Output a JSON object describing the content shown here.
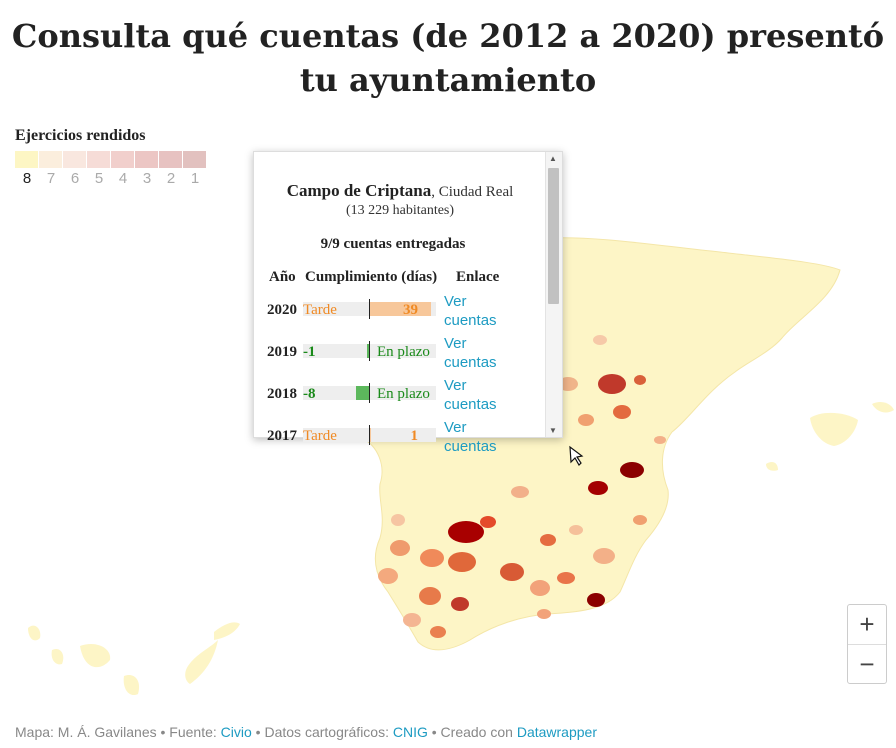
{
  "title": "Consulta qué cuentas (de 2012 a 2020) presentó tu ayuntamiento",
  "legend": {
    "title": "Ejercicios rendidos",
    "labels": [
      "8",
      "7",
      "6",
      "5",
      "4",
      "3",
      "2",
      "1"
    ],
    "active_label": "8",
    "colors": [
      "#fdf6c4",
      "#fbeedd",
      "#f9e7df",
      "#f6dcd7",
      "#f1cfcc",
      "#ecc6c4",
      "#e7c2c1",
      "#e2c1bf"
    ]
  },
  "tooltip": {
    "municipality": "Campo de Criptana",
    "province": ", Ciudad Real",
    "population": "(13 229 habitantes)",
    "summary": "9/9 cuentas entregadas",
    "headers": {
      "year": "Año",
      "compliance": "Cumplimiento (días)",
      "link": "Enlace"
    },
    "rows": [
      {
        "year": "2020",
        "label": "Tarde",
        "value": "39",
        "days": 39,
        "status": "late"
      },
      {
        "year": "2019",
        "label": "En plazo",
        "value": "-1",
        "days": -1,
        "status": "ok"
      },
      {
        "year": "2018",
        "label": "En plazo",
        "value": "-8",
        "days": -8,
        "status": "ok"
      },
      {
        "year": "2017",
        "label": "Tarde",
        "value": "1",
        "days": 1,
        "status": "late"
      }
    ],
    "link_text_line1": "Ver",
    "link_text_line2": "cuentas"
  },
  "zoom": {
    "in": "+",
    "out": "−"
  },
  "footer": {
    "text1": "Mapa: M. Á. Gavilanes • Fuente: ",
    "source": "Civio",
    "text2": " • Datos cartográficos: ",
    "carto": "CNIG",
    "text3": " • Creado con ",
    "tool": "Datawrapper"
  },
  "colors": {
    "late": "#f08a24",
    "ok": "#1a8a1a",
    "link": "#1d9bc2"
  }
}
